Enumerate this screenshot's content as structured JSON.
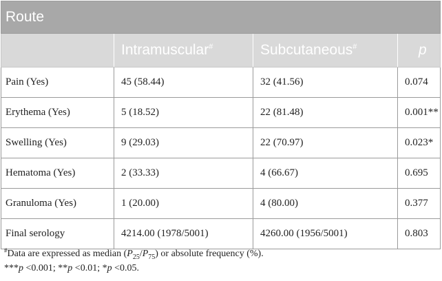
{
  "table": {
    "title": "Route",
    "headers": {
      "blank": "",
      "intramuscular": "Intramuscular",
      "subcutaneous": "Subcutaneous",
      "p": "p",
      "marker": "#"
    },
    "rows": [
      {
        "label": "Pain (Yes)",
        "im": "45 (58.44)",
        "sc": "32 (41.56)",
        "p": "0.074",
        "sig": ""
      },
      {
        "label": "Erythema (Yes)",
        "im": "5 (18.52)",
        "sc": "22 (81.48)",
        "p": "0.001",
        "sig": "**"
      },
      {
        "label": "Swelling (Yes)",
        "im": "9 (29.03)",
        "sc": "22 (70.97)",
        "p": "0.023",
        "sig": "*"
      },
      {
        "label": "Hematoma (Yes)",
        "im": "2 (33.33)",
        "sc": "4 (66.67)",
        "p": "0.695",
        "sig": ""
      },
      {
        "label": "Granuloma (Yes)",
        "im": "1 (20.00)",
        "sc": "4 (80.00)",
        "p": "0.377",
        "sig": ""
      },
      {
        "label": "Final serology",
        "im": "4214.00 (1978/5001)",
        "sc": "4260.00 (1956/5001)",
        "p": "0.803",
        "sig": ""
      }
    ]
  },
  "footnotes": {
    "note1": {
      "marker": "#",
      "text_a": "Data are expressed as median (",
      "p25_letter": "P",
      "p25_sub": "25",
      "slash": "/",
      "p75_letter": "P",
      "p75_sub": "75",
      "text_b": ") or absolute frequency (%)."
    },
    "note2": {
      "s1": "***",
      "p1": "p",
      "t1": " <0.001; ",
      "s2": "**",
      "p2": "p",
      "t2": " <0.01; ",
      "s3": "*",
      "p3": "p",
      "t3": " <0.05."
    }
  }
}
